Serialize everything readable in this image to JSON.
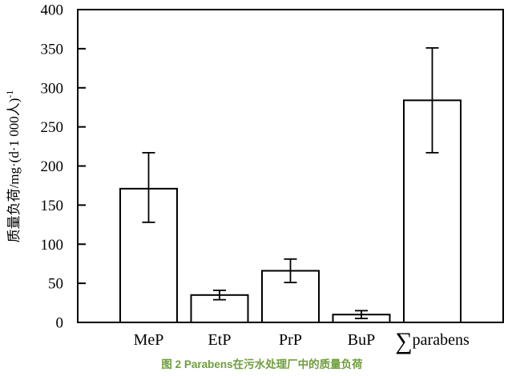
{
  "figure": {
    "caption": "图 2 Parabens在污水处理厂中的质量负荷",
    "caption_color": "#6e9e3c",
    "background_color": "#ffffff"
  },
  "chart_data": {
    "type": "bar",
    "categories": [
      "MeP",
      "EtP",
      "PrP",
      "BuP",
      "∑parabens"
    ],
    "values": [
      171,
      35,
      66,
      10,
      284
    ],
    "error_bars": {
      "low": [
        128,
        29,
        51,
        5,
        217
      ],
      "high": [
        217,
        41,
        81,
        15,
        351
      ]
    },
    "title": "",
    "xlabel": "",
    "ylabel": "质量负荷/mg·(d·1 000人)⁻¹",
    "ylim": [
      0,
      400
    ],
    "yticks": [
      0,
      50,
      100,
      150,
      200,
      250,
      300,
      350,
      400
    ],
    "grid": false,
    "legend_position": "none",
    "bar_fill": "#ffffff",
    "bar_stroke": "#000000",
    "axis_color": "#000000",
    "tick_direction": "in"
  }
}
